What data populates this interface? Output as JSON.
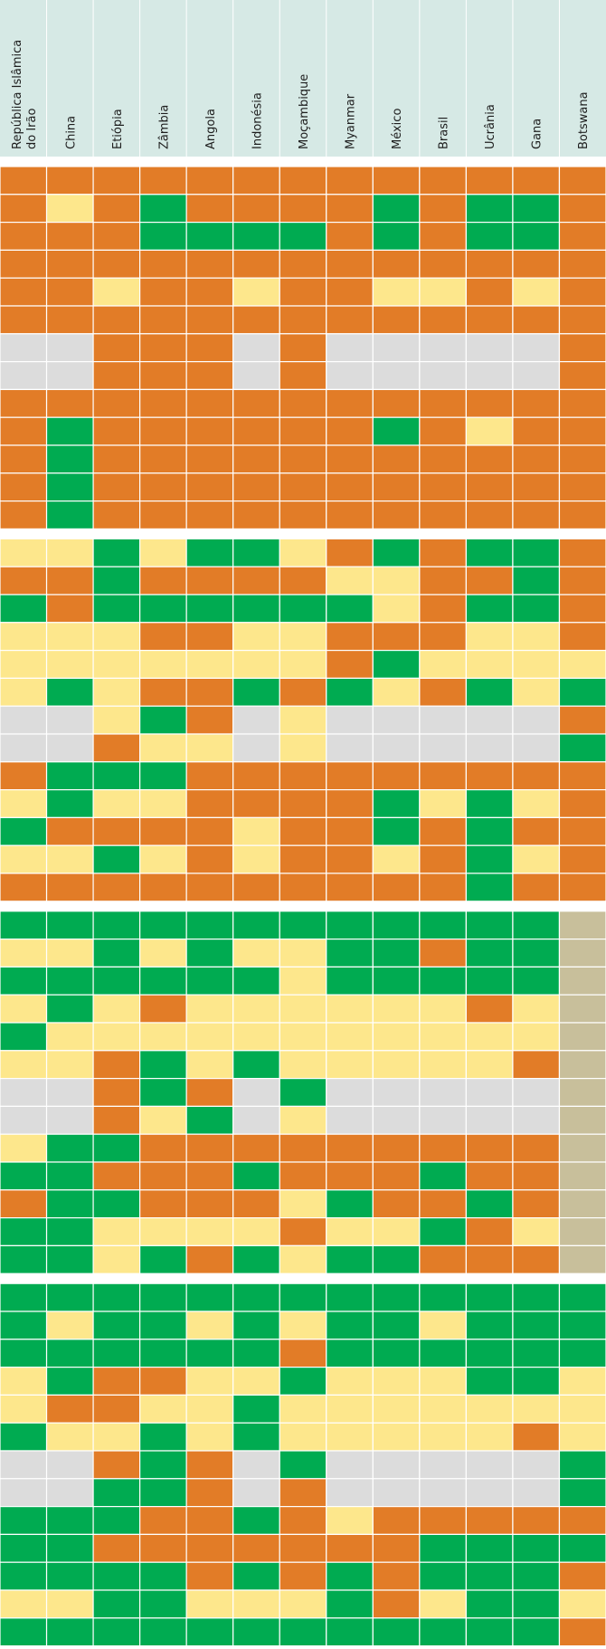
{
  "columns": [
    [
      "República Islâmica",
      "do Irão"
    ],
    [
      "China"
    ],
    [
      "Etiópia"
    ],
    [
      "Zâmbia"
    ],
    [
      "Angola"
    ],
    [
      "Indonésia"
    ],
    [
      "Moçambique"
    ],
    [
      "Myanmar"
    ],
    [
      "México"
    ],
    [
      "Brasil"
    ],
    [
      "Ucrânia"
    ],
    [
      "Gana"
    ],
    [
      "Botswana"
    ]
  ],
  "colors": {
    "O": "#e27c27",
    "G": "#00ab51",
    "Y": "#fde78c",
    "X": "#dcdcdc",
    "B": "#c8bf9b"
  },
  "blocks": [
    {
      "rows": [
        "OOOOOOOOOOOOO",
        "OYOGOOOOGOGGO",
        "OOOGGGGOGOGGO",
        "OOOOOOOOOOOOO",
        "OOYOOYOOYYOYO",
        "OOOOOOOOOOOOO",
        "XXOOOXOXXXXXO",
        "XXOOOXOXXXXXO",
        "OOOOOOOOOOOOO",
        "OGOOOOOOGOYOO",
        "OGOOOOOOOOOOO",
        "OGOOOOOOOOOOO",
        "OGOOOOOOOOOOO"
      ]
    },
    {
      "rows": [
        "YYGYGGYOGOGGO",
        "OOGOOOOYYOOGO",
        "GOGGGGGGYOGGO",
        "YYYOOYYOOOYYO",
        "YYYYYYYOGYYYY",
        "YGYOOGOGYOGYG",
        "XXYGOXYXXXXXO",
        "XXOYYXYXXXXXG",
        "OGGGOOOOOOOOO",
        "YGYYOOOOGYGYO",
        "GOOOOYOOGOGOO",
        "YYGYOYOOYOGYO",
        "OOOOOOOOOOGOO"
      ]
    },
    {
      "rows": [
        "GGGGGGGGGGGGB",
        "YYGYGYYGGOGGB",
        "GGGGGGYGGGGGB",
        "YGYOYYYYYYOYB",
        "GYYYYYYYYYYYB",
        "YYOGYGYYYYYOB",
        "XXOGOXGXXXXXB",
        "XXOYGXYXXXXXB",
        "YGGOOOOOOOOOB",
        "GGOOOGOOOGOOB",
        "OGGOOOYGOOGOB",
        "GGYYYYOYYGOYB",
        "GGYGOGYGGOOOB"
      ]
    },
    {
      "rows": [
        "GGGGGGGGGGGGG",
        "GYGGYGYGGYGGG",
        "GGGGGGOGGGGGG",
        "YGOOYYGYYYGGY",
        "YOOYYGYYYYYYY",
        "GYYGYGYYYYYOY",
        "XXOGOXGXXXXXG",
        "XXGGOXOXXXXXG",
        "GGGOOGOYOOOOO",
        "GGOOOOOOOGGGG",
        "GGGGOGOGOGGGO",
        "YYGGYYYGOYGGY",
        "GGGGGGGGGGGGO"
      ]
    }
  ]
}
